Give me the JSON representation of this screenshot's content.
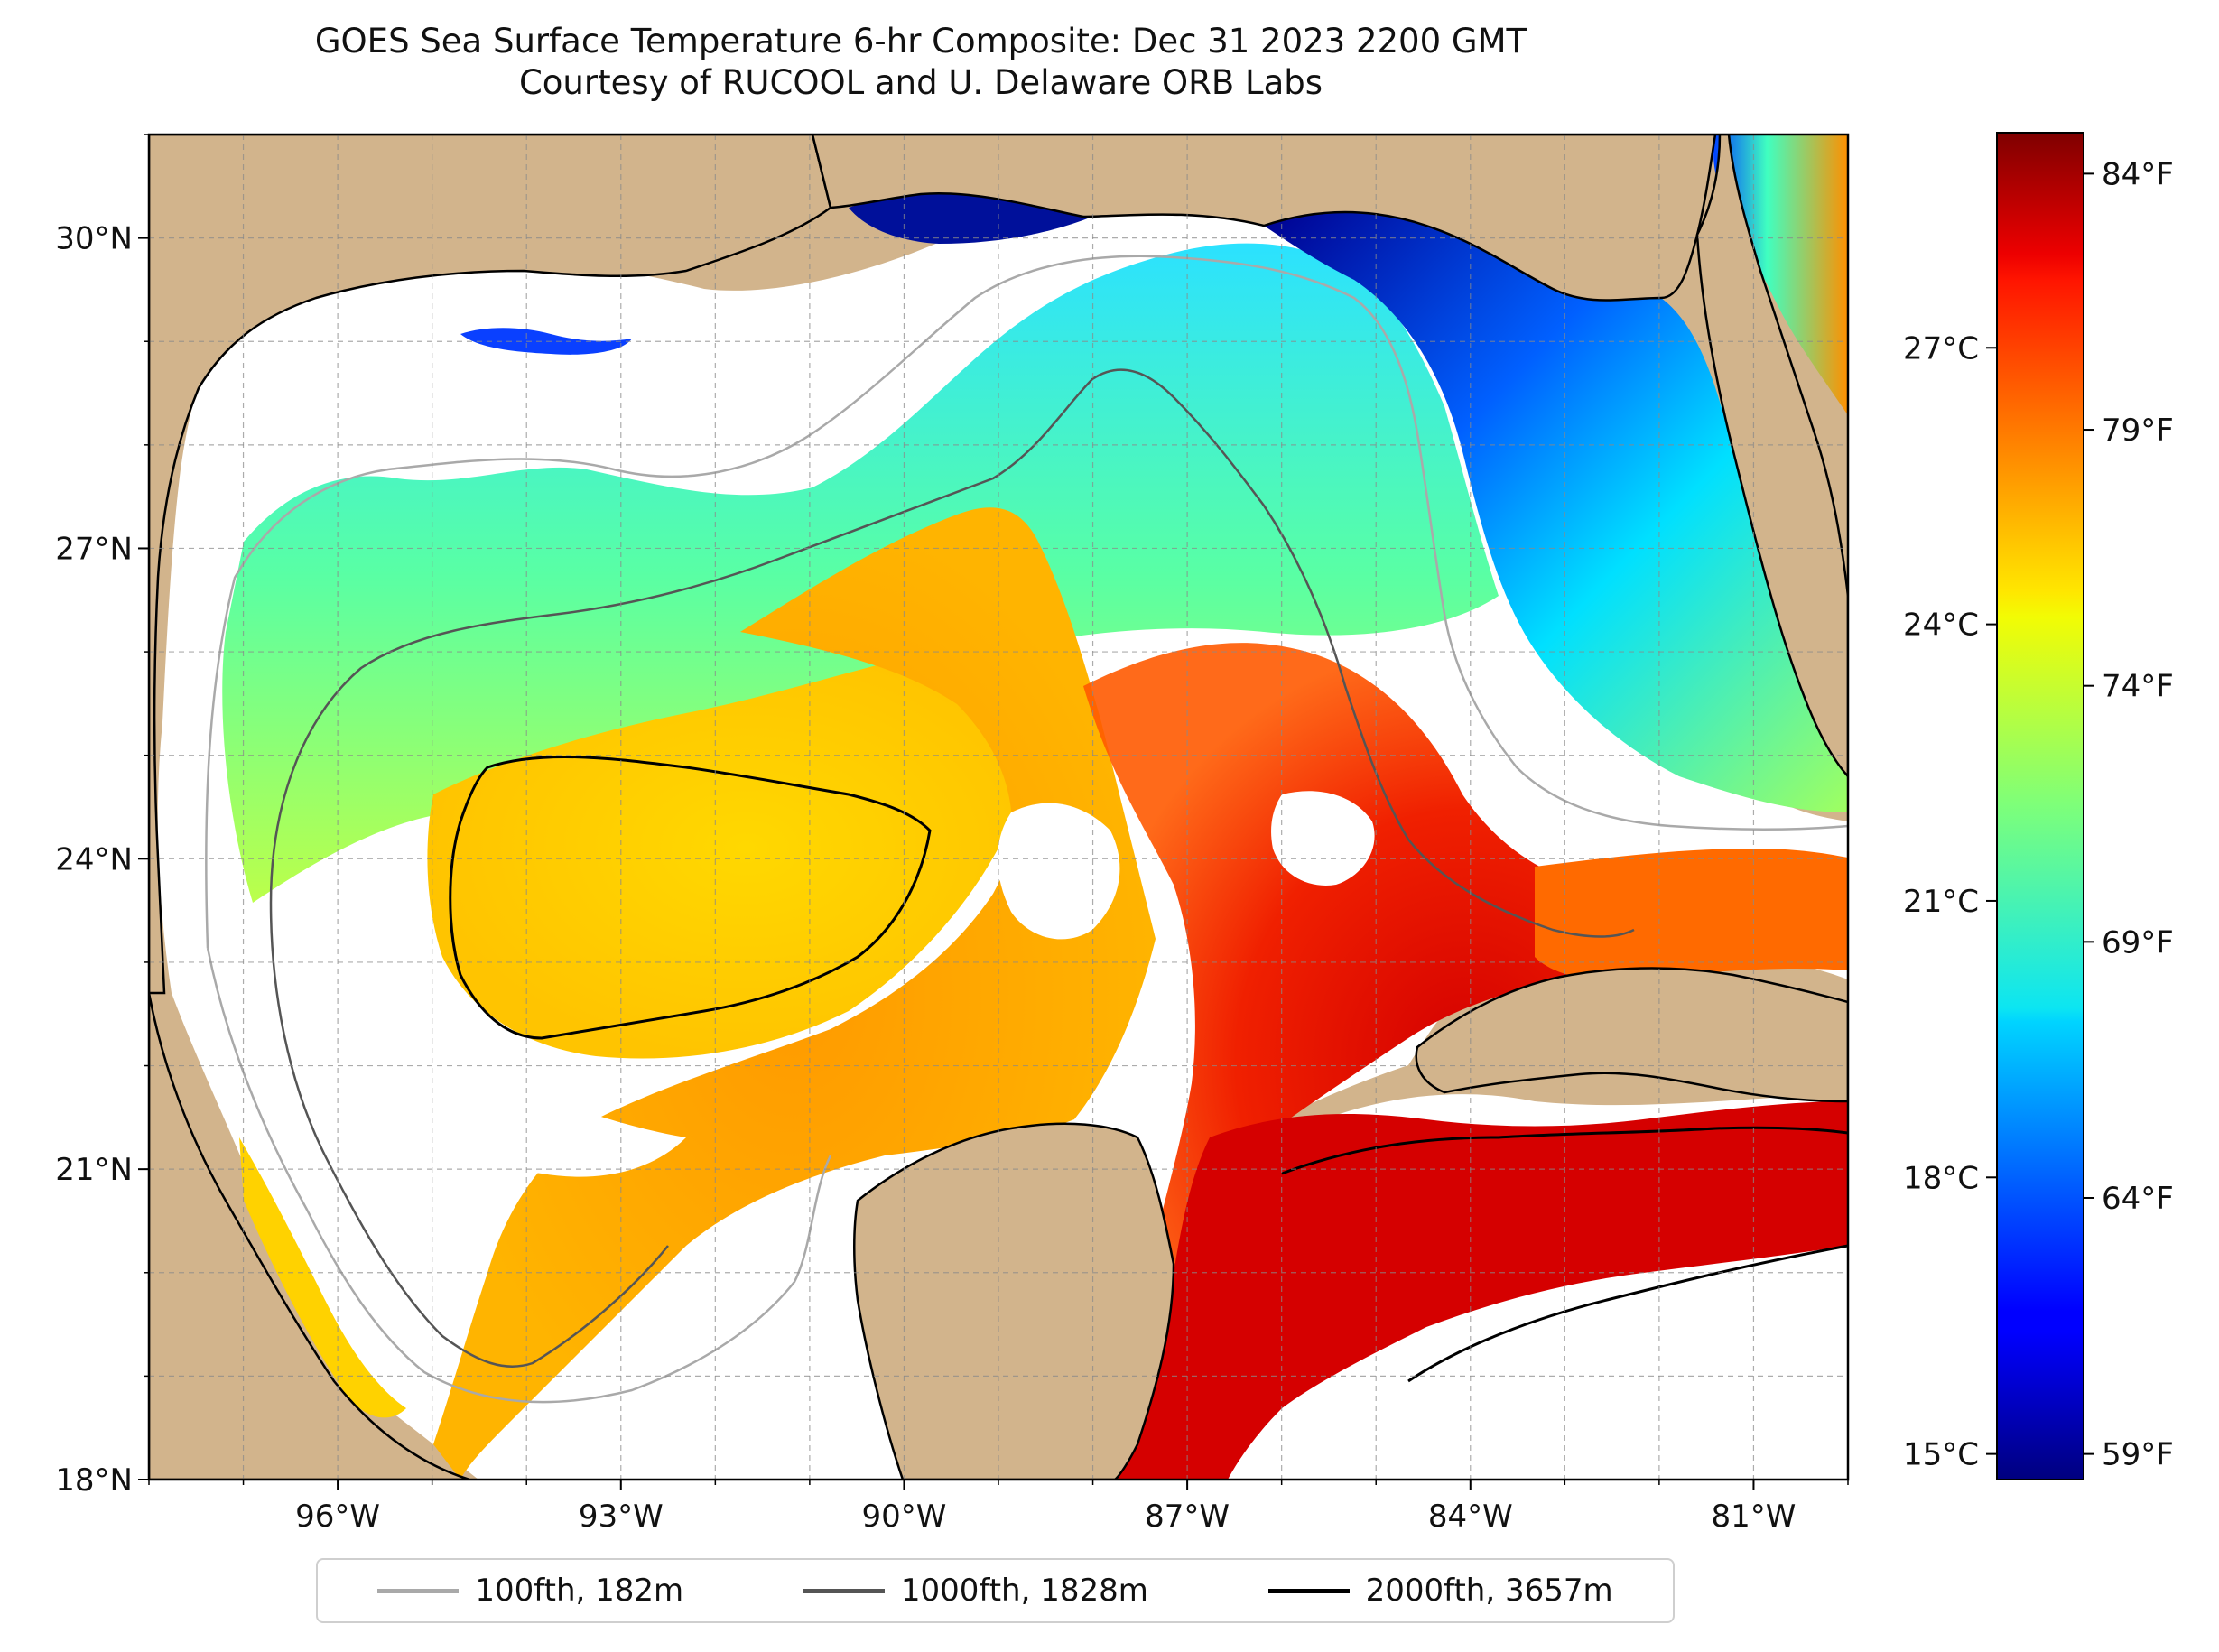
{
  "title": {
    "line1": "GOES Sea Surface Temperature 6-hr Composite: Dec 31 2023 2200 GMT",
    "line2": "Courtesy of RUCOOL and U. Delaware ORB Labs"
  },
  "map": {
    "lon_range": [
      -98,
      -80
    ],
    "lat_range": [
      18,
      31
    ],
    "land_color": "#d2b48c",
    "ocean_nodata_color": "#ffffff",
    "gridlines": true,
    "lon_ticks": [
      {
        "value": -96,
        "label": "96°W"
      },
      {
        "value": -93,
        "label": "93°W"
      },
      {
        "value": -90,
        "label": "90°W"
      },
      {
        "value": -87,
        "label": "87°W"
      },
      {
        "value": -84,
        "label": "84°W"
      },
      {
        "value": -81,
        "label": "81°W"
      }
    ],
    "lat_ticks": [
      {
        "value": 30,
        "label": "30°N"
      },
      {
        "value": 27,
        "label": "27°N"
      },
      {
        "value": 24,
        "label": "24°N"
      },
      {
        "value": 21,
        "label": "21°N"
      },
      {
        "value": 18,
        "label": "18°N"
      }
    ]
  },
  "colorbar": {
    "colormap": "jet",
    "range_f": [
      58.5,
      84.8
    ],
    "celsius_ticks": [
      {
        "value": 15,
        "label": "15°C"
      },
      {
        "value": 18,
        "label": "18°C"
      },
      {
        "value": 21,
        "label": "21°C"
      },
      {
        "value": 24,
        "label": "24°C"
      },
      {
        "value": 27,
        "label": "27°C"
      }
    ],
    "fahrenheit_ticks": [
      {
        "value": 59,
        "label": "59°F"
      },
      {
        "value": 64,
        "label": "64°F"
      },
      {
        "value": 69,
        "label": "69°F"
      },
      {
        "value": 74,
        "label": "74°F"
      },
      {
        "value": 79,
        "label": "79°F"
      },
      {
        "value": 84,
        "label": "84°F"
      }
    ]
  },
  "legend": {
    "placement": "bottom-center",
    "items": [
      {
        "label": "100fth, 182m",
        "color": "#a9a9a9"
      },
      {
        "label": "1000fth, 1828m",
        "color": "#555555"
      },
      {
        "label": "2000fth, 3657m",
        "color": "#000000"
      }
    ]
  }
}
